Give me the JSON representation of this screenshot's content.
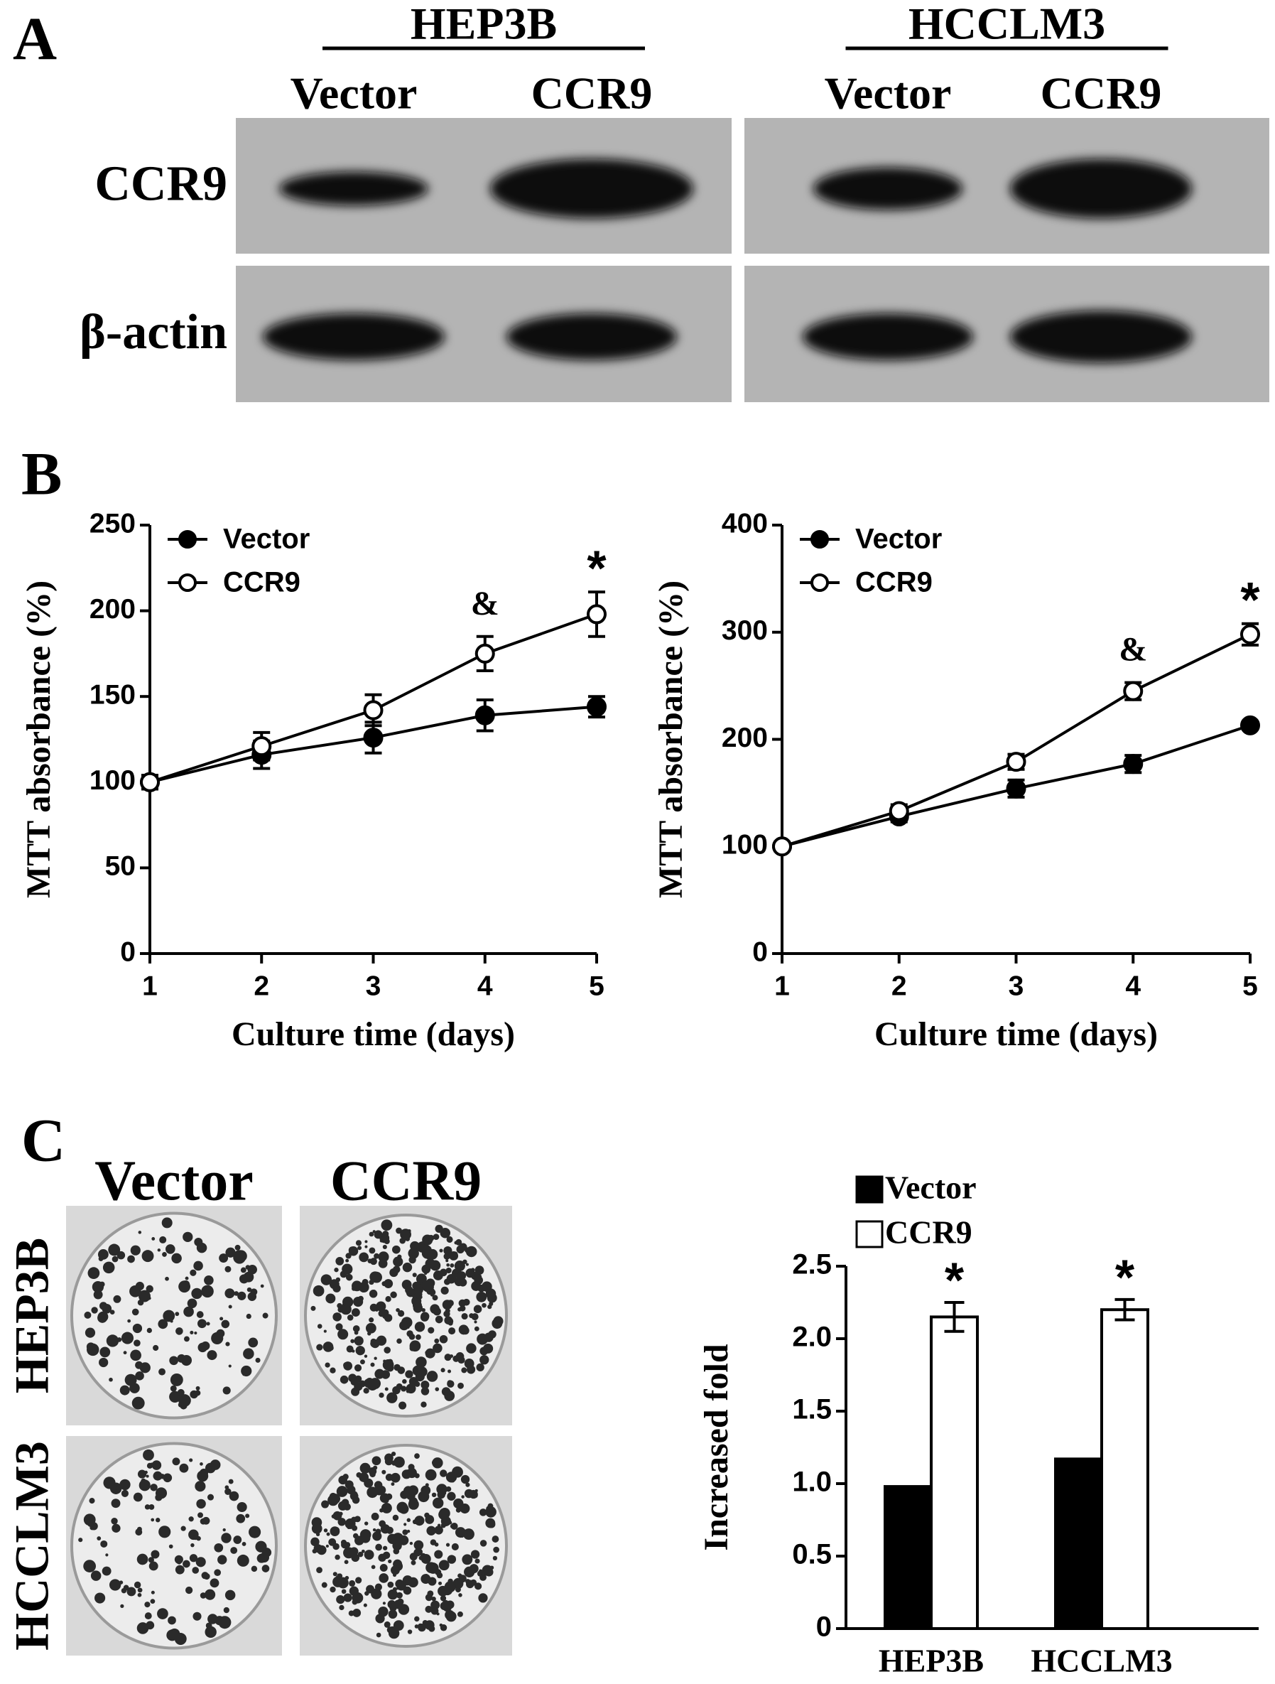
{
  "panels": {
    "a": "A",
    "b": "B",
    "c": "C"
  },
  "blot": {
    "groups": [
      {
        "name": "HEP3B",
        "lanes": [
          "Vector",
          "CCR9"
        ]
      },
      {
        "name": "HCCLM3",
        "lanes": [
          "Vector",
          "CCR9"
        ]
      }
    ],
    "rows": [
      "CCR9",
      "β-actin"
    ]
  },
  "colony": {
    "columns": [
      "Vector",
      "CCR9"
    ],
    "rows": [
      "HEP3B",
      "HCCLM3"
    ]
  },
  "chart_data": [
    {
      "type": "line",
      "x_label": "Culture time (days)",
      "y_label": "MTT absorbance (%)",
      "x": [
        1,
        2,
        3,
        4,
        5
      ],
      "xlim": [
        1,
        5
      ],
      "xticks": [
        1,
        2,
        3,
        4,
        5
      ],
      "ylim": [
        0,
        250
      ],
      "yticks": [
        0,
        50,
        100,
        150,
        200,
        250
      ],
      "legend": "upper left",
      "series": [
        {
          "name": "Vector",
          "color": "#000000",
          "marker": "filled",
          "values": [
            100,
            116,
            126,
            139,
            144
          ],
          "errors": [
            4,
            8,
            9,
            9,
            6
          ]
        },
        {
          "name": "CCR9",
          "color": "#000000",
          "marker": "open",
          "values": [
            100,
            121,
            142,
            175,
            198
          ],
          "errors": [
            4,
            8,
            9,
            10,
            13
          ]
        }
      ],
      "annotations": [
        {
          "text": "&",
          "x": 4
        },
        {
          "text": "*",
          "x": 5
        }
      ]
    },
    {
      "type": "line",
      "x_label": "Culture time (days)",
      "y_label": "MTT absorbance (%)",
      "x": [
        1,
        2,
        3,
        4,
        5
      ],
      "xlim": [
        1,
        5
      ],
      "xticks": [
        1,
        2,
        3,
        4,
        5
      ],
      "ylim": [
        0,
        400
      ],
      "yticks": [
        0,
        100,
        200,
        300,
        400
      ],
      "legend": "upper left",
      "series": [
        {
          "name": "Vector",
          "color": "#000000",
          "marker": "filled",
          "values": [
            100,
            128,
            154,
            177,
            213
          ],
          "errors": [
            4,
            5,
            8,
            8,
            3
          ]
        },
        {
          "name": "CCR9",
          "color": "#000000",
          "marker": "open",
          "values": [
            100,
            133,
            179,
            245,
            298
          ],
          "errors": [
            3,
            6,
            7,
            8,
            10
          ]
        }
      ],
      "annotations": [
        {
          "text": "&",
          "x": 4
        },
        {
          "text": "*",
          "x": 5
        }
      ]
    },
    {
      "type": "bar",
      "y_label": "Increased fold",
      "categories": [
        "HEP3B",
        "HCCLM3"
      ],
      "ylim": [
        0,
        2.5
      ],
      "yticks": [
        0,
        0.5,
        {
          "value": 1,
          "label": "1.0"
        },
        1.5,
        {
          "value": 2,
          "label": "2.0"
        },
        2.5
      ],
      "legend": "top",
      "series": [
        {
          "name": "Vector",
          "color": "#000000",
          "values": [
            0.98,
            1.17
          ]
        },
        {
          "name": "CCR9",
          "color": "#ffffff",
          "values": [
            2.15,
            2.2
          ],
          "errors": [
            0.1,
            0.07
          ]
        }
      ],
      "annotations": [
        {
          "text": "*",
          "category": 0
        },
        {
          "text": "*",
          "category": 1
        }
      ]
    }
  ]
}
